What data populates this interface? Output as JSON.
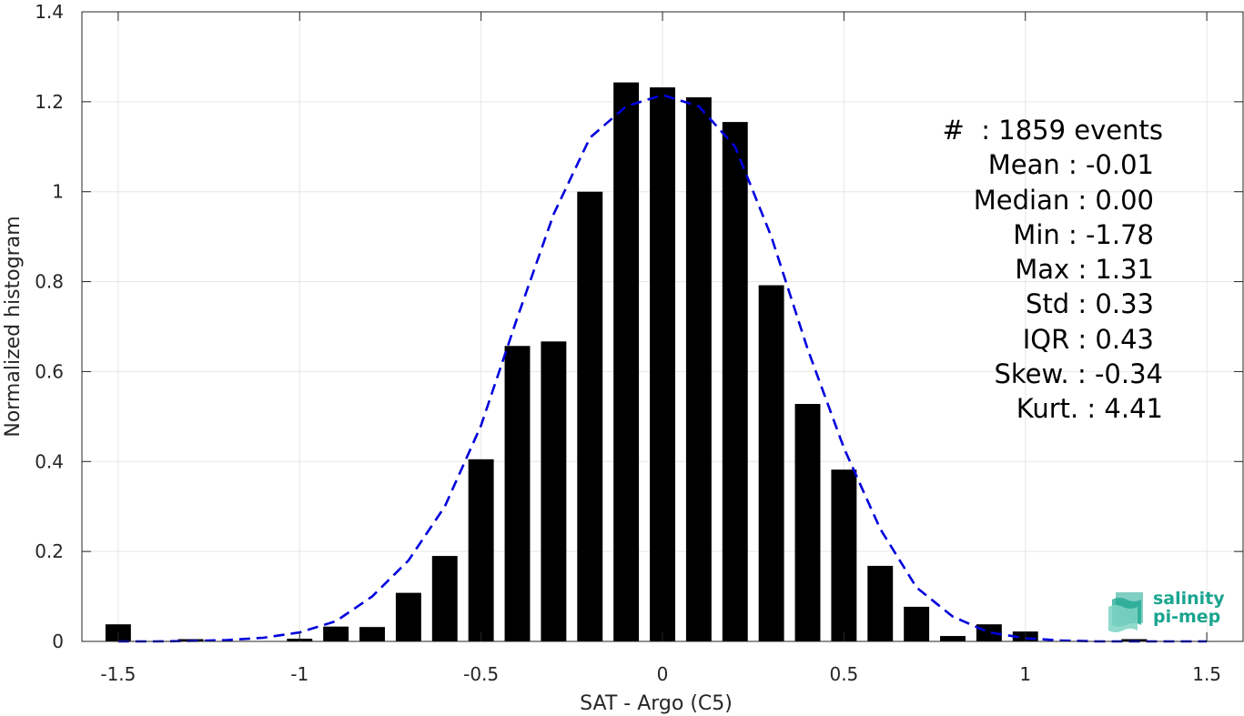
{
  "chart_data": {
    "type": "bar",
    "xlabel": "SAT - Argo (C5)",
    "ylabel": "Normalized histogram",
    "xlim": [
      -1.6,
      1.6
    ],
    "ylim": [
      0,
      1.4
    ],
    "grid": true,
    "xticks": [
      "-1.5",
      "-1",
      "-0.5",
      "0",
      "0.5",
      "1",
      "1.5"
    ],
    "yticks": [
      "0",
      "0.2",
      "0.4",
      "0.6",
      "0.8",
      "1",
      "1.2",
      "1.4"
    ],
    "bar_color": "#000000",
    "bar_width": 0.07,
    "bars": [
      {
        "x": -1.5,
        "y": 0.038
      },
      {
        "x": -1.4,
        "y": 0.0
      },
      {
        "x": -1.3,
        "y": 0.005
      },
      {
        "x": -1.2,
        "y": 0.0
      },
      {
        "x": -1.1,
        "y": 0.0
      },
      {
        "x": -1.0,
        "y": 0.006
      },
      {
        "x": -0.9,
        "y": 0.033
      },
      {
        "x": -0.8,
        "y": 0.032
      },
      {
        "x": -0.7,
        "y": 0.108
      },
      {
        "x": -0.6,
        "y": 0.19
      },
      {
        "x": -0.5,
        "y": 0.405
      },
      {
        "x": -0.4,
        "y": 0.657
      },
      {
        "x": -0.3,
        "y": 0.667
      },
      {
        "x": -0.2,
        "y": 1.0
      },
      {
        "x": -0.1,
        "y": 1.243
      },
      {
        "x": 0.0,
        "y": 1.232
      },
      {
        "x": 0.1,
        "y": 1.21
      },
      {
        "x": 0.2,
        "y": 1.155
      },
      {
        "x": 0.3,
        "y": 0.792
      },
      {
        "x": 0.4,
        "y": 0.528
      },
      {
        "x": 0.5,
        "y": 0.382
      },
      {
        "x": 0.6,
        "y": 0.168
      },
      {
        "x": 0.7,
        "y": 0.077
      },
      {
        "x": 0.8,
        "y": 0.012
      },
      {
        "x": 0.9,
        "y": 0.038
      },
      {
        "x": 1.0,
        "y": 0.022
      },
      {
        "x": 1.1,
        "y": 0.0
      },
      {
        "x": 1.2,
        "y": 0.0
      },
      {
        "x": 1.3,
        "y": 0.005
      }
    ],
    "fit_curve": {
      "color": "#0000dd",
      "style": "dashed",
      "x": [
        -1.5,
        -1.4,
        -1.3,
        -1.2,
        -1.1,
        -1.0,
        -0.9,
        -0.8,
        -0.7,
        -0.6,
        -0.5,
        -0.4,
        -0.3,
        -0.2,
        -0.1,
        0.0,
        0.1,
        0.2,
        0.3,
        0.4,
        0.5,
        0.6,
        0.7,
        0.8,
        0.9,
        1.0,
        1.1,
        1.2,
        1.3,
        1.4,
        1.5
      ],
      "y": [
        0.0,
        0.0,
        0.001,
        0.003,
        0.008,
        0.02,
        0.045,
        0.1,
        0.18,
        0.3,
        0.48,
        0.72,
        0.95,
        1.12,
        1.19,
        1.215,
        1.19,
        1.1,
        0.9,
        0.65,
        0.43,
        0.25,
        0.12,
        0.055,
        0.02,
        0.007,
        0.002,
        0.0,
        0.0,
        0.0,
        0.0
      ]
    }
  },
  "stats": {
    "events": "#  : 1859 events",
    "mean": "Mean : -0.01",
    "median": "Median : 0.00",
    "min": "Min : -1.78",
    "max": "Max : 1.31",
    "std": "Std : 0.33",
    "iqr": "IQR : 0.43",
    "skew": "Skew. : -0.34",
    "kurt": "Kurt. : 4.41"
  },
  "logo": {
    "line1": "salinity",
    "line2": "pi-mep",
    "color": "#1aa58f"
  }
}
